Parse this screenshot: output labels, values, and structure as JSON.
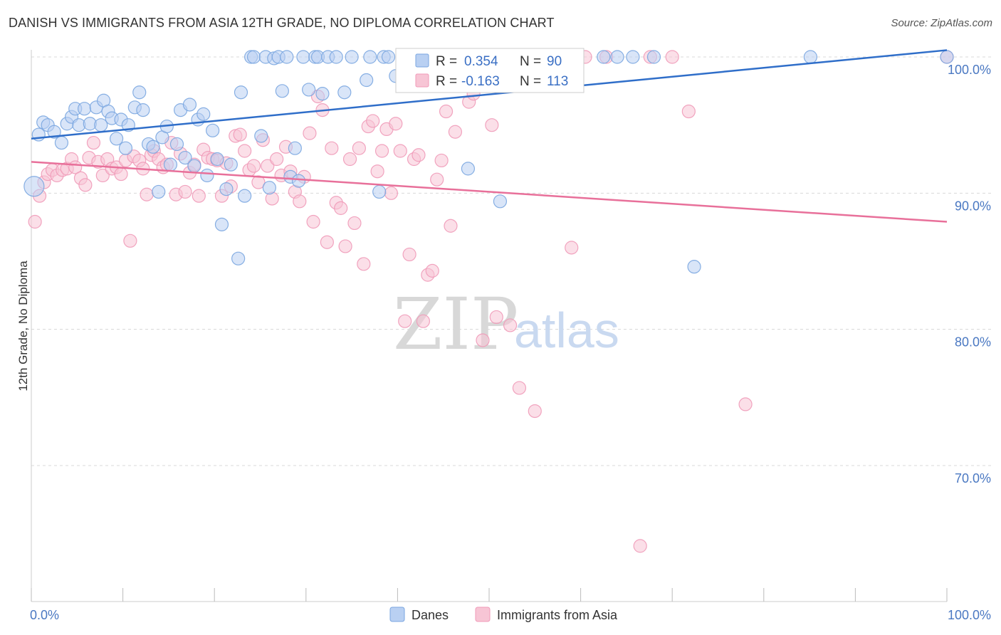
{
  "title": "DANISH VS IMMIGRANTS FROM ASIA 12TH GRADE, NO DIPLOMA CORRELATION CHART",
  "source": "Source: ZipAtlas.com",
  "watermark": {
    "zip": "ZIP",
    "atlas": "atlas"
  },
  "colors": {
    "danes": "#7aa6e0",
    "danes_fill": "#b9d0f2",
    "danes_line": "#2f6ec9",
    "asia": "#f09ab8",
    "asia_fill": "#f7c5d5",
    "asia_line": "#e8709a",
    "grid": "#d8d8d8",
    "axis_text": "#4a78c2"
  },
  "stats": {
    "danes": {
      "r_label": "R =",
      "r_value": "0.354",
      "n_label": "N =",
      "n_value": "90"
    },
    "asia": {
      "r_label": "R =",
      "r_value": "-0.163",
      "n_label": "N =",
      "n_value": "113"
    }
  },
  "chart_data": {
    "type": "scatter",
    "title": "DANISH VS IMMIGRANTS FROM ASIA 12TH GRADE, NO DIPLOMA CORRELATION CHART",
    "xlabel": "",
    "ylabel": "12th Grade, No Diploma",
    "xlim": [
      0,
      100
    ],
    "ylim": [
      61.0,
      101.5
    ],
    "x_tick_labels": [
      "0.0%",
      "100.0%"
    ],
    "y_ticks": [
      {
        "value": 100,
        "label": "100.0%"
      },
      {
        "value": 90,
        "label": "90.0%"
      },
      {
        "value": 80,
        "label": "80.0%"
      },
      {
        "value": 70,
        "label": "70.0%"
      }
    ],
    "grid": true,
    "legend_position": "bottom-center",
    "series": [
      {
        "name": "Danes",
        "trend": [
          [
            0,
            94.0
          ],
          [
            100,
            100.5
          ]
        ],
        "points": [
          [
            0.3,
            90.5
          ],
          [
            0.8,
            94.3
          ],
          [
            1.3,
            95.2
          ],
          [
            1.8,
            95.0
          ],
          [
            2.5,
            94.5
          ],
          [
            3.3,
            93.7
          ],
          [
            3.9,
            95.1
          ],
          [
            4.4,
            95.6
          ],
          [
            4.8,
            96.2
          ],
          [
            5.2,
            95.0
          ],
          [
            5.8,
            96.2
          ],
          [
            6.4,
            95.1
          ],
          [
            7.1,
            96.3
          ],
          [
            7.6,
            95.0
          ],
          [
            7.9,
            96.8
          ],
          [
            8.4,
            96.0
          ],
          [
            8.8,
            95.5
          ],
          [
            9.3,
            94.0
          ],
          [
            9.8,
            95.4
          ],
          [
            10.3,
            93.3
          ],
          [
            10.6,
            95.0
          ],
          [
            11.3,
            96.3
          ],
          [
            11.8,
            97.4
          ],
          [
            12.2,
            96.1
          ],
          [
            12.8,
            93.6
          ],
          [
            13.3,
            93.4
          ],
          [
            13.9,
            90.1
          ],
          [
            14.3,
            94.1
          ],
          [
            14.8,
            94.9
          ],
          [
            15.2,
            92.1
          ],
          [
            15.9,
            93.6
          ],
          [
            16.3,
            96.1
          ],
          [
            16.8,
            92.6
          ],
          [
            17.3,
            96.5
          ],
          [
            17.8,
            92.0
          ],
          [
            18.2,
            95.4
          ],
          [
            18.8,
            95.8
          ],
          [
            19.2,
            91.3
          ],
          [
            19.8,
            94.6
          ],
          [
            20.3,
            92.5
          ],
          [
            20.8,
            87.7
          ],
          [
            21.3,
            90.3
          ],
          [
            21.8,
            92.1
          ],
          [
            22.6,
            85.2
          ],
          [
            22.9,
            97.4
          ],
          [
            23.3,
            89.8
          ],
          [
            24.0,
            100.0
          ],
          [
            24.3,
            100.0
          ],
          [
            25.1,
            94.2
          ],
          [
            25.6,
            100.0
          ],
          [
            26.0,
            90.4
          ],
          [
            26.5,
            99.9
          ],
          [
            27.0,
            100.0
          ],
          [
            27.4,
            97.5
          ],
          [
            27.9,
            100.0
          ],
          [
            28.3,
            91.2
          ],
          [
            28.8,
            93.3
          ],
          [
            29.2,
            90.9
          ],
          [
            29.7,
            100.0
          ],
          [
            30.3,
            97.6
          ],
          [
            31.0,
            100.0
          ],
          [
            31.3,
            100.0
          ],
          [
            31.8,
            97.3
          ],
          [
            32.4,
            100.0
          ],
          [
            33.3,
            100.0
          ],
          [
            34.2,
            97.4
          ],
          [
            35.0,
            100.0
          ],
          [
            36.6,
            98.3
          ],
          [
            37.0,
            100.0
          ],
          [
            38.0,
            90.1
          ],
          [
            38.5,
            100.0
          ],
          [
            39.0,
            100.0
          ],
          [
            39.8,
            98.6
          ],
          [
            41.3,
            100.0
          ],
          [
            43.0,
            100.0
          ],
          [
            44.3,
            100.0
          ],
          [
            45.4,
            100.0
          ],
          [
            47.7,
            91.8
          ],
          [
            49.5,
            100.0
          ],
          [
            51.2,
            89.4
          ],
          [
            52.0,
            100.0
          ],
          [
            53.0,
            100.0
          ],
          [
            58.8,
            100.0
          ],
          [
            62.5,
            100.0
          ],
          [
            64.0,
            100.0
          ],
          [
            65.7,
            100.0
          ],
          [
            68.0,
            100.0
          ],
          [
            72.4,
            84.6
          ],
          [
            85.1,
            100.0
          ],
          [
            100,
            100.0
          ]
        ]
      },
      {
        "name": "Immigrants from Asia",
        "trend": [
          [
            0,
            92.3
          ],
          [
            100,
            87.9
          ]
        ],
        "points": [
          [
            0.4,
            87.9
          ],
          [
            0.9,
            89.8
          ],
          [
            1.4,
            90.8
          ],
          [
            1.8,
            91.4
          ],
          [
            2.3,
            91.7
          ],
          [
            2.8,
            91.3
          ],
          [
            3.4,
            91.7
          ],
          [
            3.9,
            91.8
          ],
          [
            4.4,
            92.5
          ],
          [
            4.8,
            91.9
          ],
          [
            5.4,
            91.1
          ],
          [
            5.9,
            90.6
          ],
          [
            6.3,
            92.6
          ],
          [
            6.8,
            93.7
          ],
          [
            7.3,
            92.3
          ],
          [
            7.8,
            91.3
          ],
          [
            8.3,
            92.5
          ],
          [
            8.8,
            91.8
          ],
          [
            9.3,
            91.9
          ],
          [
            9.8,
            91.4
          ],
          [
            10.3,
            92.4
          ],
          [
            10.8,
            86.5
          ],
          [
            11.2,
            92.7
          ],
          [
            11.8,
            92.4
          ],
          [
            12.2,
            91.8
          ],
          [
            12.6,
            89.9
          ],
          [
            13.1,
            92.8
          ],
          [
            13.4,
            93.1
          ],
          [
            13.9,
            92.5
          ],
          [
            14.4,
            91.9
          ],
          [
            14.8,
            92.1
          ],
          [
            15.3,
            93.7
          ],
          [
            15.8,
            89.9
          ],
          [
            16.3,
            92.9
          ],
          [
            16.8,
            90.1
          ],
          [
            17.3,
            91.5
          ],
          [
            17.8,
            92.1
          ],
          [
            18.3,
            89.8
          ],
          [
            18.8,
            93.2
          ],
          [
            19.3,
            92.6
          ],
          [
            19.8,
            92.5
          ],
          [
            20.3,
            92.4
          ],
          [
            20.8,
            89.8
          ],
          [
            21.3,
            92.2
          ],
          [
            21.8,
            90.5
          ],
          [
            22.3,
            94.2
          ],
          [
            22.8,
            94.3
          ],
          [
            23.3,
            93.1
          ],
          [
            23.8,
            91.7
          ],
          [
            24.3,
            92.0
          ],
          [
            24.8,
            90.8
          ],
          [
            25.3,
            93.9
          ],
          [
            25.8,
            92.0
          ],
          [
            26.3,
            89.6
          ],
          [
            26.8,
            92.5
          ],
          [
            27.3,
            91.3
          ],
          [
            27.8,
            93.4
          ],
          [
            28.3,
            91.6
          ],
          [
            28.8,
            90.1
          ],
          [
            29.3,
            89.4
          ],
          [
            29.8,
            91.2
          ],
          [
            30.4,
            94.4
          ],
          [
            30.8,
            87.9
          ],
          [
            31.3,
            97.1
          ],
          [
            31.8,
            96.1
          ],
          [
            32.3,
            86.4
          ],
          [
            32.8,
            93.3
          ],
          [
            33.3,
            89.3
          ],
          [
            33.8,
            88.9
          ],
          [
            34.3,
            86.1
          ],
          [
            34.8,
            92.5
          ],
          [
            35.3,
            87.8
          ],
          [
            35.8,
            93.3
          ],
          [
            36.3,
            84.8
          ],
          [
            36.8,
            94.9
          ],
          [
            37.3,
            95.3
          ],
          [
            37.8,
            91.6
          ],
          [
            38.3,
            93.1
          ],
          [
            38.8,
            94.7
          ],
          [
            39.3,
            90.0
          ],
          [
            39.8,
            95.1
          ],
          [
            40.3,
            93.1
          ],
          [
            40.8,
            80.6
          ],
          [
            41.3,
            85.5
          ],
          [
            41.8,
            92.5
          ],
          [
            42.3,
            92.8
          ],
          [
            42.8,
            80.6
          ],
          [
            43.3,
            84.0
          ],
          [
            43.8,
            84.3
          ],
          [
            44.3,
            91.0
          ],
          [
            44.8,
            92.4
          ],
          [
            45.3,
            96.0
          ],
          [
            45.8,
            87.6
          ],
          [
            46.3,
            94.5
          ],
          [
            46.8,
            100.0
          ],
          [
            47.8,
            96.7
          ],
          [
            48.3,
            97.3
          ],
          [
            49.3,
            79.2
          ],
          [
            50.3,
            95.0
          ],
          [
            50.8,
            80.9
          ],
          [
            52.3,
            80.3
          ],
          [
            53.3,
            75.7
          ],
          [
            55.0,
            74.0
          ],
          [
            59.0,
            86.0
          ],
          [
            60.5,
            100.0
          ],
          [
            62.8,
            100.0
          ],
          [
            66.5,
            64.1
          ],
          [
            67.6,
            100.0
          ],
          [
            70.0,
            100.0
          ],
          [
            71.8,
            96.0
          ],
          [
            78.0,
            74.5
          ],
          [
            100,
            100.0
          ]
        ]
      }
    ]
  }
}
